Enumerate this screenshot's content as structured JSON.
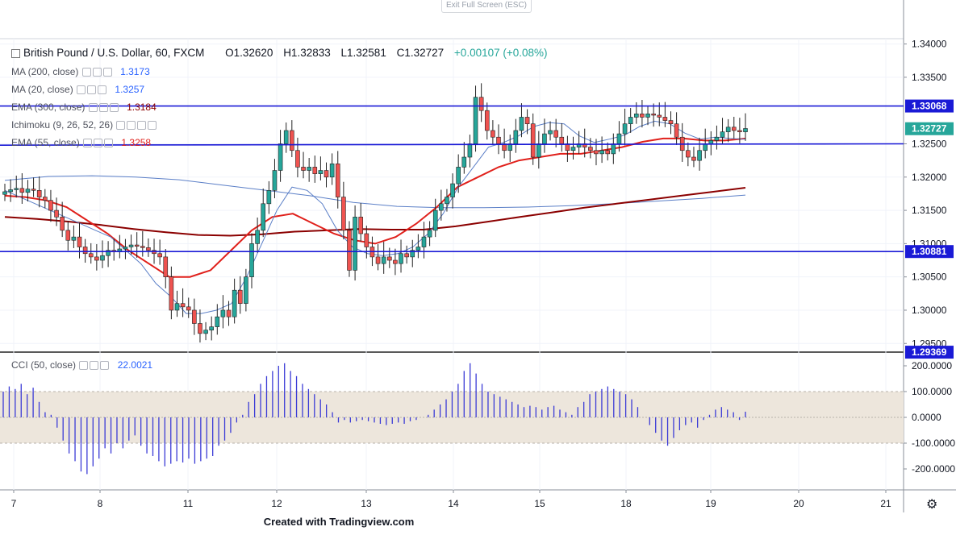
{
  "exit_fullscreen_label": "Exit Full Screen (ESC)",
  "footer": "Created with Tradingview.com",
  "header": {
    "symbol": "British Pound / U.S. Dollar, 60, FXCM",
    "open": "O1.32620",
    "high": "H1.32833",
    "low": "L1.32581",
    "close": "C1.32727",
    "change": "+0.00107 (+0.08%)"
  },
  "indicators": [
    {
      "label": "MA (200, close)",
      "value": "1.3173",
      "color": "#2962ff"
    },
    {
      "label": "MA (20, close)",
      "value": "1.3257",
      "color": "#2962ff"
    },
    {
      "label": "EMA (300, close)",
      "value": "1.3184",
      "color": "#8b0000"
    },
    {
      "label": "Ichimoku (9, 26, 52, 26)",
      "value": "",
      "color": "#2962ff"
    },
    {
      "label": "EMA (55, close)",
      "value": "1.3258",
      "color": "#e0201b"
    }
  ],
  "cci": {
    "label": "CCI (50, close)",
    "value": "22.0021"
  },
  "colors": {
    "up": "#26a69a",
    "down": "#ef5350",
    "hline": "#1a1ad6",
    "ma20": "#5b7fc7",
    "ma200": "#5b7fc7",
    "ema55": "#e0201b",
    "ema300": "#8b0000",
    "cci_band": "#ede6dc",
    "cci_line": "#3b3bd6"
  },
  "chart_data": {
    "type": "candlestick",
    "x_tick_labels": [
      "7",
      "8",
      "11",
      "12",
      "13",
      "14",
      "15",
      "18",
      "19",
      "20",
      "21"
    ],
    "price_axis_labels": [
      "1.34000",
      "1.33500",
      "1.33068",
      "1.32727",
      "1.32500",
      "1.32000",
      "1.31500",
      "1.31000",
      "1.30881",
      "1.30500",
      "1.30000",
      "1.29500",
      "1.29369"
    ],
    "price_ticks": [
      1.34,
      1.335,
      1.325,
      1.32,
      1.315,
      1.31,
      1.305,
      1.3,
      1.295
    ],
    "ylim": [
      1.2937,
      1.3408
    ],
    "horizontal_lines": [
      1.33068,
      1.32727,
      1.30881
    ],
    "trendline": [
      1.3248,
      1.325
    ],
    "badges": [
      {
        "value": "1.33068",
        "bg": "#1a1ad6"
      },
      {
        "value": "1.32727",
        "bg": "#26a69a"
      },
      {
        "value": "1.30881",
        "bg": "#1a1ad6"
      },
      {
        "value": "1.29369",
        "bg": "#1a1ad6"
      }
    ],
    "closes": [
      1.3178,
      1.3181,
      1.3183,
      1.3177,
      1.3182,
      1.318,
      1.317,
      1.3165,
      1.315,
      1.314,
      1.312,
      1.3105,
      1.311,
      1.3095,
      1.3085,
      1.308,
      1.3075,
      1.3082,
      1.309,
      1.3088,
      1.3092,
      1.3095,
      1.3098,
      1.3096,
      1.3094,
      1.309,
      1.3085,
      1.308,
      1.305,
      1.3,
      1.301,
      1.3005,
      1.3,
      1.298,
      1.2965,
      1.297,
      1.2975,
      1.299,
      1.3,
      1.299,
      1.303,
      1.301,
      1.305,
      1.31,
      1.312,
      1.316,
      1.318,
      1.321,
      1.325,
      1.327,
      1.324,
      1.3215,
      1.321,
      1.3215,
      1.3205,
      1.321,
      1.32,
      1.322,
      1.317,
      1.312,
      1.306,
      1.314,
      1.3115,
      1.3095,
      1.308,
      1.307,
      1.308,
      1.3075,
      1.307,
      1.3085,
      1.308,
      1.309,
      1.3095,
      1.311,
      1.312,
      1.315,
      1.316,
      1.317,
      1.319,
      1.3215,
      1.323,
      1.325,
      1.332,
      1.33,
      1.327,
      1.326,
      1.325,
      1.324,
      1.325,
      1.327,
      1.329,
      1.328,
      1.323,
      1.325,
      1.3265,
      1.327,
      1.326,
      1.325,
      1.324,
      1.3245,
      1.325,
      1.3245,
      1.324,
      1.3235,
      1.324,
      1.3235,
      1.325,
      1.3265,
      1.328,
      1.329,
      1.3295,
      1.329,
      1.3295,
      1.3293,
      1.329,
      1.3285,
      1.328,
      1.326,
      1.324,
      1.323,
      1.3225,
      1.324,
      1.325,
      1.3255,
      1.326,
      1.3268,
      1.3275,
      1.327,
      1.3268,
      1.3273
    ],
    "ma20": [
      1.318,
      1.317,
      1.316,
      1.315,
      1.314,
      1.313,
      1.312,
      1.311,
      1.309,
      1.307,
      1.304,
      1.302,
      1.2995,
      1.2995,
      1.3,
      1.301,
      1.305,
      1.31,
      1.315,
      1.3185,
      1.318,
      1.316,
      1.312,
      1.3095,
      1.3085,
      1.3082,
      1.3085,
      1.3095,
      1.3115,
      1.3145,
      1.3185,
      1.3215,
      1.3245,
      1.3252,
      1.3262,
      1.3276,
      1.3282,
      1.328,
      1.3262,
      1.3252,
      1.3257,
      1.3263,
      1.3276,
      1.3284,
      1.328,
      1.3266,
      1.3257,
      1.326,
      1.3258,
      1.3257
    ],
    "ema55": [
      1.3172,
      1.317,
      1.3165,
      1.3155,
      1.3135,
      1.3115,
      1.309,
      1.307,
      1.305,
      1.305,
      1.306,
      1.309,
      1.312,
      1.314,
      1.3145,
      1.313,
      1.3115,
      1.3105,
      1.31,
      1.311,
      1.313,
      1.3155,
      1.3185,
      1.32,
      1.3215,
      1.3225,
      1.323,
      1.3235,
      1.3235,
      1.324,
      1.3245,
      1.3253,
      1.3258,
      1.3258,
      1.3255,
      1.3255,
      1.3258
    ],
    "ema300": [
      1.314,
      1.3137,
      1.3133,
      1.3128,
      1.3122,
      1.3117,
      1.3113,
      1.3112,
      1.3114,
      1.3118,
      1.312,
      1.3122,
      1.3121,
      1.3121,
      1.3126,
      1.3133,
      1.314,
      1.3147,
      1.3154,
      1.316,
      1.3166,
      1.3172,
      1.3178,
      1.3184
    ],
    "ma200": [
      1.3195,
      1.3201,
      1.3202,
      1.32,
      1.3196,
      1.3188,
      1.318,
      1.3172,
      1.3162,
      1.3156,
      1.3154,
      1.3154,
      1.3155,
      1.3157,
      1.316,
      1.3164,
      1.3168,
      1.3173
    ],
    "cci_ticks": [
      "200.0000",
      "100.0000",
      "0.0000",
      "-100.0000",
      "-200.0000"
    ],
    "cci_band": [
      -100,
      100
    ],
    "cci_values": [
      100,
      120,
      110,
      130,
      90,
      115,
      60,
      20,
      10,
      -40,
      -90,
      -140,
      -170,
      -210,
      -220,
      -190,
      -160,
      -120,
      -140,
      -100,
      -120,
      -90,
      -70,
      -110,
      -140,
      -150,
      -170,
      -190,
      -180,
      -170,
      -175,
      -160,
      -180,
      -170,
      -160,
      -150,
      -110,
      -90,
      -60,
      -20,
      10,
      60,
      90,
      130,
      160,
      180,
      200,
      210,
      180,
      160,
      130,
      110,
      90,
      70,
      50,
      20,
      -20,
      -10,
      -20,
      -15,
      -10,
      -15,
      -20,
      -25,
      -30,
      -25,
      -20,
      -25,
      -15,
      -10,
      0,
      10,
      30,
      50,
      70,
      100,
      130,
      180,
      210,
      170,
      130,
      100,
      90,
      80,
      70,
      60,
      50,
      40,
      45,
      40,
      30,
      40,
      45,
      30,
      20,
      10,
      40,
      60,
      90,
      100,
      110,
      120,
      110,
      100,
      90,
      70,
      40,
      0,
      -30,
      -60,
      -90,
      -110,
      -80,
      -50,
      -30,
      -20,
      -40,
      -10,
      10,
      30,
      40,
      30,
      20,
      -10,
      22
    ]
  }
}
